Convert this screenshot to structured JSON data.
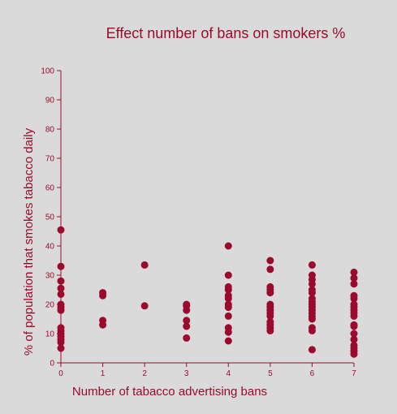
{
  "chart_data": {
    "type": "scatter",
    "title": "Effect number of bans on smokers %",
    "xlabel": "Number of tabacco advertising bans",
    "ylabel": "% of population that smokes tabacco daily",
    "xlim": [
      0,
      7
    ],
    "ylim": [
      0,
      100
    ],
    "x_ticks": [
      0,
      1,
      2,
      3,
      4,
      5,
      6,
      7
    ],
    "y_ticks": [
      0,
      10,
      20,
      30,
      40,
      50,
      60,
      70,
      80,
      90,
      100
    ],
    "grid": false,
    "color": "#9b0a2d",
    "points": [
      [
        0,
        45.5
      ],
      [
        0,
        33
      ],
      [
        0,
        28
      ],
      [
        0,
        25.5
      ],
      [
        0,
        23.5
      ],
      [
        0,
        20
      ],
      [
        0,
        19
      ],
      [
        0,
        18
      ],
      [
        0,
        12
      ],
      [
        0,
        11
      ],
      [
        0,
        10
      ],
      [
        0,
        9
      ],
      [
        0,
        8
      ],
      [
        0,
        7
      ],
      [
        0,
        5
      ],
      [
        1,
        24
      ],
      [
        1,
        23
      ],
      [
        1,
        14.5
      ],
      [
        1,
        13
      ],
      [
        2,
        33.5
      ],
      [
        2,
        19.5
      ],
      [
        3,
        20
      ],
      [
        3,
        19.5
      ],
      [
        3,
        18
      ],
      [
        3,
        14.5
      ],
      [
        3,
        12.5
      ],
      [
        3,
        8.5
      ],
      [
        4,
        40
      ],
      [
        4,
        30
      ],
      [
        4,
        26
      ],
      [
        4,
        25
      ],
      [
        4,
        23
      ],
      [
        4,
        22
      ],
      [
        4,
        20
      ],
      [
        4,
        19
      ],
      [
        4,
        16
      ],
      [
        4,
        12
      ],
      [
        4,
        10.5
      ],
      [
        4,
        7.5
      ],
      [
        5,
        35
      ],
      [
        5,
        32
      ],
      [
        5,
        26
      ],
      [
        5,
        25
      ],
      [
        5,
        24
      ],
      [
        5,
        20
      ],
      [
        5,
        19
      ],
      [
        5,
        18
      ],
      [
        5,
        17
      ],
      [
        5,
        16
      ],
      [
        5,
        14
      ],
      [
        5,
        13
      ],
      [
        5,
        12
      ],
      [
        5,
        11
      ],
      [
        6,
        33.5
      ],
      [
        6,
        30
      ],
      [
        6,
        28.5
      ],
      [
        6,
        27
      ],
      [
        6,
        25
      ],
      [
        6,
        24
      ],
      [
        6,
        22
      ],
      [
        6,
        21
      ],
      [
        6,
        20
      ],
      [
        6,
        19
      ],
      [
        6,
        18
      ],
      [
        6,
        17
      ],
      [
        6,
        16
      ],
      [
        6,
        15
      ],
      [
        6,
        12
      ],
      [
        6,
        11
      ],
      [
        6,
        4.5
      ],
      [
        7,
        31
      ],
      [
        7,
        29
      ],
      [
        7,
        27
      ],
      [
        7,
        23
      ],
      [
        7,
        22
      ],
      [
        7,
        20
      ],
      [
        7,
        19
      ],
      [
        7,
        18
      ],
      [
        7,
        17
      ],
      [
        7,
        16
      ],
      [
        7,
        13
      ],
      [
        7,
        12.5
      ],
      [
        7,
        10
      ],
      [
        7,
        8
      ],
      [
        7,
        6
      ],
      [
        7,
        5
      ],
      [
        7,
        4
      ],
      [
        7,
        3
      ]
    ]
  }
}
